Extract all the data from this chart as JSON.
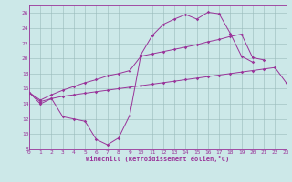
{
  "bg_color": "#cce8e8",
  "grid_color": "#99bbbb",
  "line_color": "#993399",
  "ylim": [
    8,
    27
  ],
  "xlim": [
    0,
    23
  ],
  "yticks": [
    8,
    10,
    12,
    14,
    16,
    18,
    20,
    22,
    24,
    26
  ],
  "xticks": [
    0,
    1,
    2,
    3,
    4,
    5,
    6,
    7,
    8,
    9,
    10,
    11,
    12,
    13,
    14,
    15,
    16,
    17,
    18,
    19,
    20,
    21,
    22,
    23
  ],
  "xlabel": "Windchill (Refroidissement éolien,°C)",
  "line1_x": [
    0,
    1,
    2,
    3,
    4,
    5,
    6,
    7,
    8,
    9,
    10,
    11,
    12,
    13,
    14,
    15,
    16,
    17,
    18,
    19,
    20
  ],
  "line1_y": [
    15.5,
    14.0,
    14.7,
    12.3,
    12.0,
    11.7,
    9.3,
    8.6,
    9.5,
    12.5,
    20.5,
    23.0,
    24.5,
    25.2,
    25.8,
    25.2,
    26.1,
    25.9,
    23.3,
    20.3,
    19.5
  ],
  "line2_x": [
    0,
    1,
    2,
    3,
    4,
    5,
    6,
    7,
    8,
    9,
    10,
    11,
    12,
    13,
    14,
    15,
    16,
    17,
    18,
    19,
    20,
    21,
    22,
    23
  ],
  "line2_y": [
    15.5,
    14.3,
    14.7,
    15.0,
    15.2,
    15.4,
    15.6,
    15.8,
    16.0,
    16.2,
    16.4,
    16.6,
    16.8,
    17.0,
    17.2,
    17.4,
    17.6,
    17.8,
    18.0,
    18.2,
    18.4,
    18.6,
    18.8,
    16.8
  ],
  "line3_x": [
    0,
    1,
    2,
    3,
    4,
    5,
    6,
    7,
    8,
    9,
    10,
    11,
    12,
    13,
    14,
    15,
    16,
    17,
    18,
    19,
    20,
    21
  ],
  "line3_y": [
    15.5,
    14.5,
    15.2,
    15.8,
    16.3,
    16.8,
    17.2,
    17.7,
    18.0,
    18.4,
    20.3,
    20.6,
    20.9,
    21.2,
    21.5,
    21.8,
    22.2,
    22.5,
    22.9,
    23.2,
    20.1,
    19.8
  ]
}
